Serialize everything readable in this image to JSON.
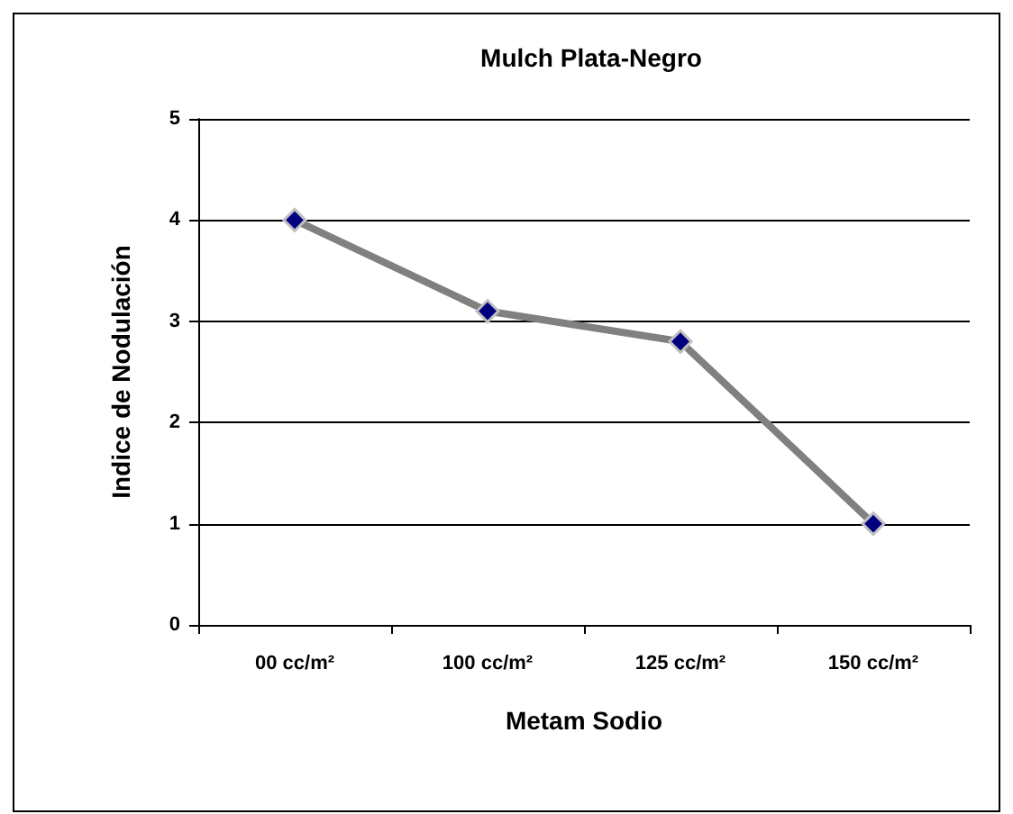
{
  "chart_data": {
    "type": "line",
    "title": "Mulch Plata-Negro",
    "xlabel": "Metam Sodio",
    "ylabel": "Indice de Nodulación",
    "categories": [
      "00 cc/m²",
      "100 cc/m²",
      "125 cc/m²",
      "150 cc/m²"
    ],
    "series": [
      {
        "color": "#808080",
        "values": [
          4,
          3.1,
          2.8,
          1
        ]
      }
    ],
    "ylim": [
      0,
      5
    ],
    "yticks": [
      0,
      1,
      2,
      3,
      4,
      5
    ],
    "grid": "y",
    "marker": "diamond",
    "line_style": "solid"
  }
}
